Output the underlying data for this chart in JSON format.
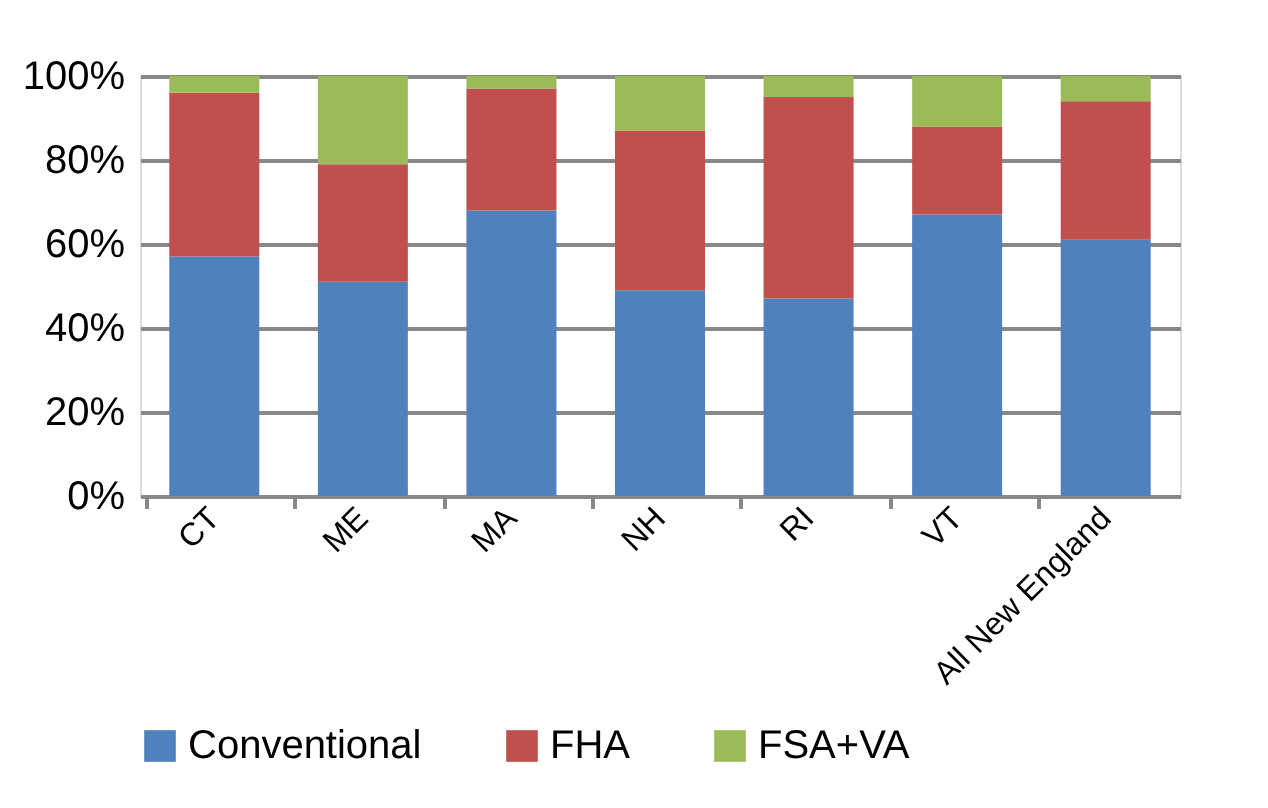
{
  "chart_data": {
    "type": "bar",
    "stacked": true,
    "categories": [
      "CT",
      "ME",
      "MA",
      "NH",
      "RI",
      "VT",
      "All New England"
    ],
    "series": [
      {
        "name": "Conventional",
        "color": "#4f81bd",
        "values": [
          57,
          51,
          68,
          49,
          47,
          67,
          61
        ]
      },
      {
        "name": "FHA",
        "color": "#c0504d",
        "values": [
          39,
          28,
          29,
          38,
          48,
          21,
          33
        ]
      },
      {
        "name": "FSA+VA",
        "color": "#9bbb59",
        "values": [
          4,
          21,
          3,
          13,
          5,
          12,
          6
        ]
      }
    ],
    "ylim": [
      0,
      100
    ],
    "yticks": [
      {
        "value": 0,
        "label": "0%"
      },
      {
        "value": 20,
        "label": "20%"
      },
      {
        "value": 40,
        "label": "40%"
      },
      {
        "value": 60,
        "label": "60%"
      },
      {
        "value": 80,
        "label": "80%"
      },
      {
        "value": 100,
        "label": "100%"
      }
    ],
    "grid": "y",
    "legend": "bottom"
  }
}
